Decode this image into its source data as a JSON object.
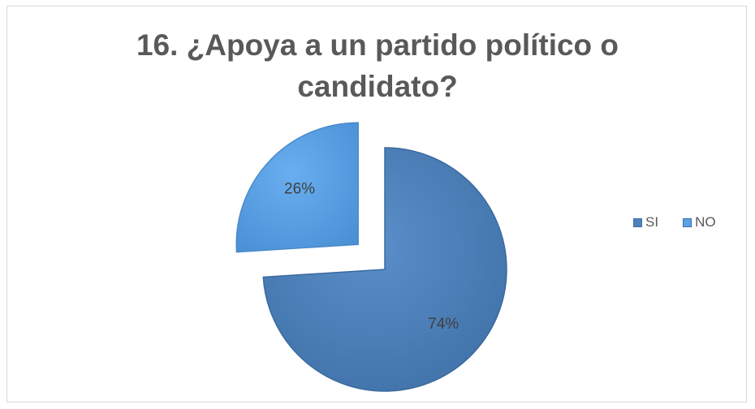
{
  "chart_data": {
    "type": "pie",
    "title_lines": [
      "16. ¿Apoya a un partido político o",
      "candidato?"
    ],
    "categories": [
      "SI",
      "NO"
    ],
    "values": [
      74,
      26
    ],
    "data_labels": [
      "74%",
      "26%"
    ],
    "colors": [
      "#4f81bd",
      "#5aa2e6"
    ],
    "exploded": true,
    "legend_position": "right"
  }
}
